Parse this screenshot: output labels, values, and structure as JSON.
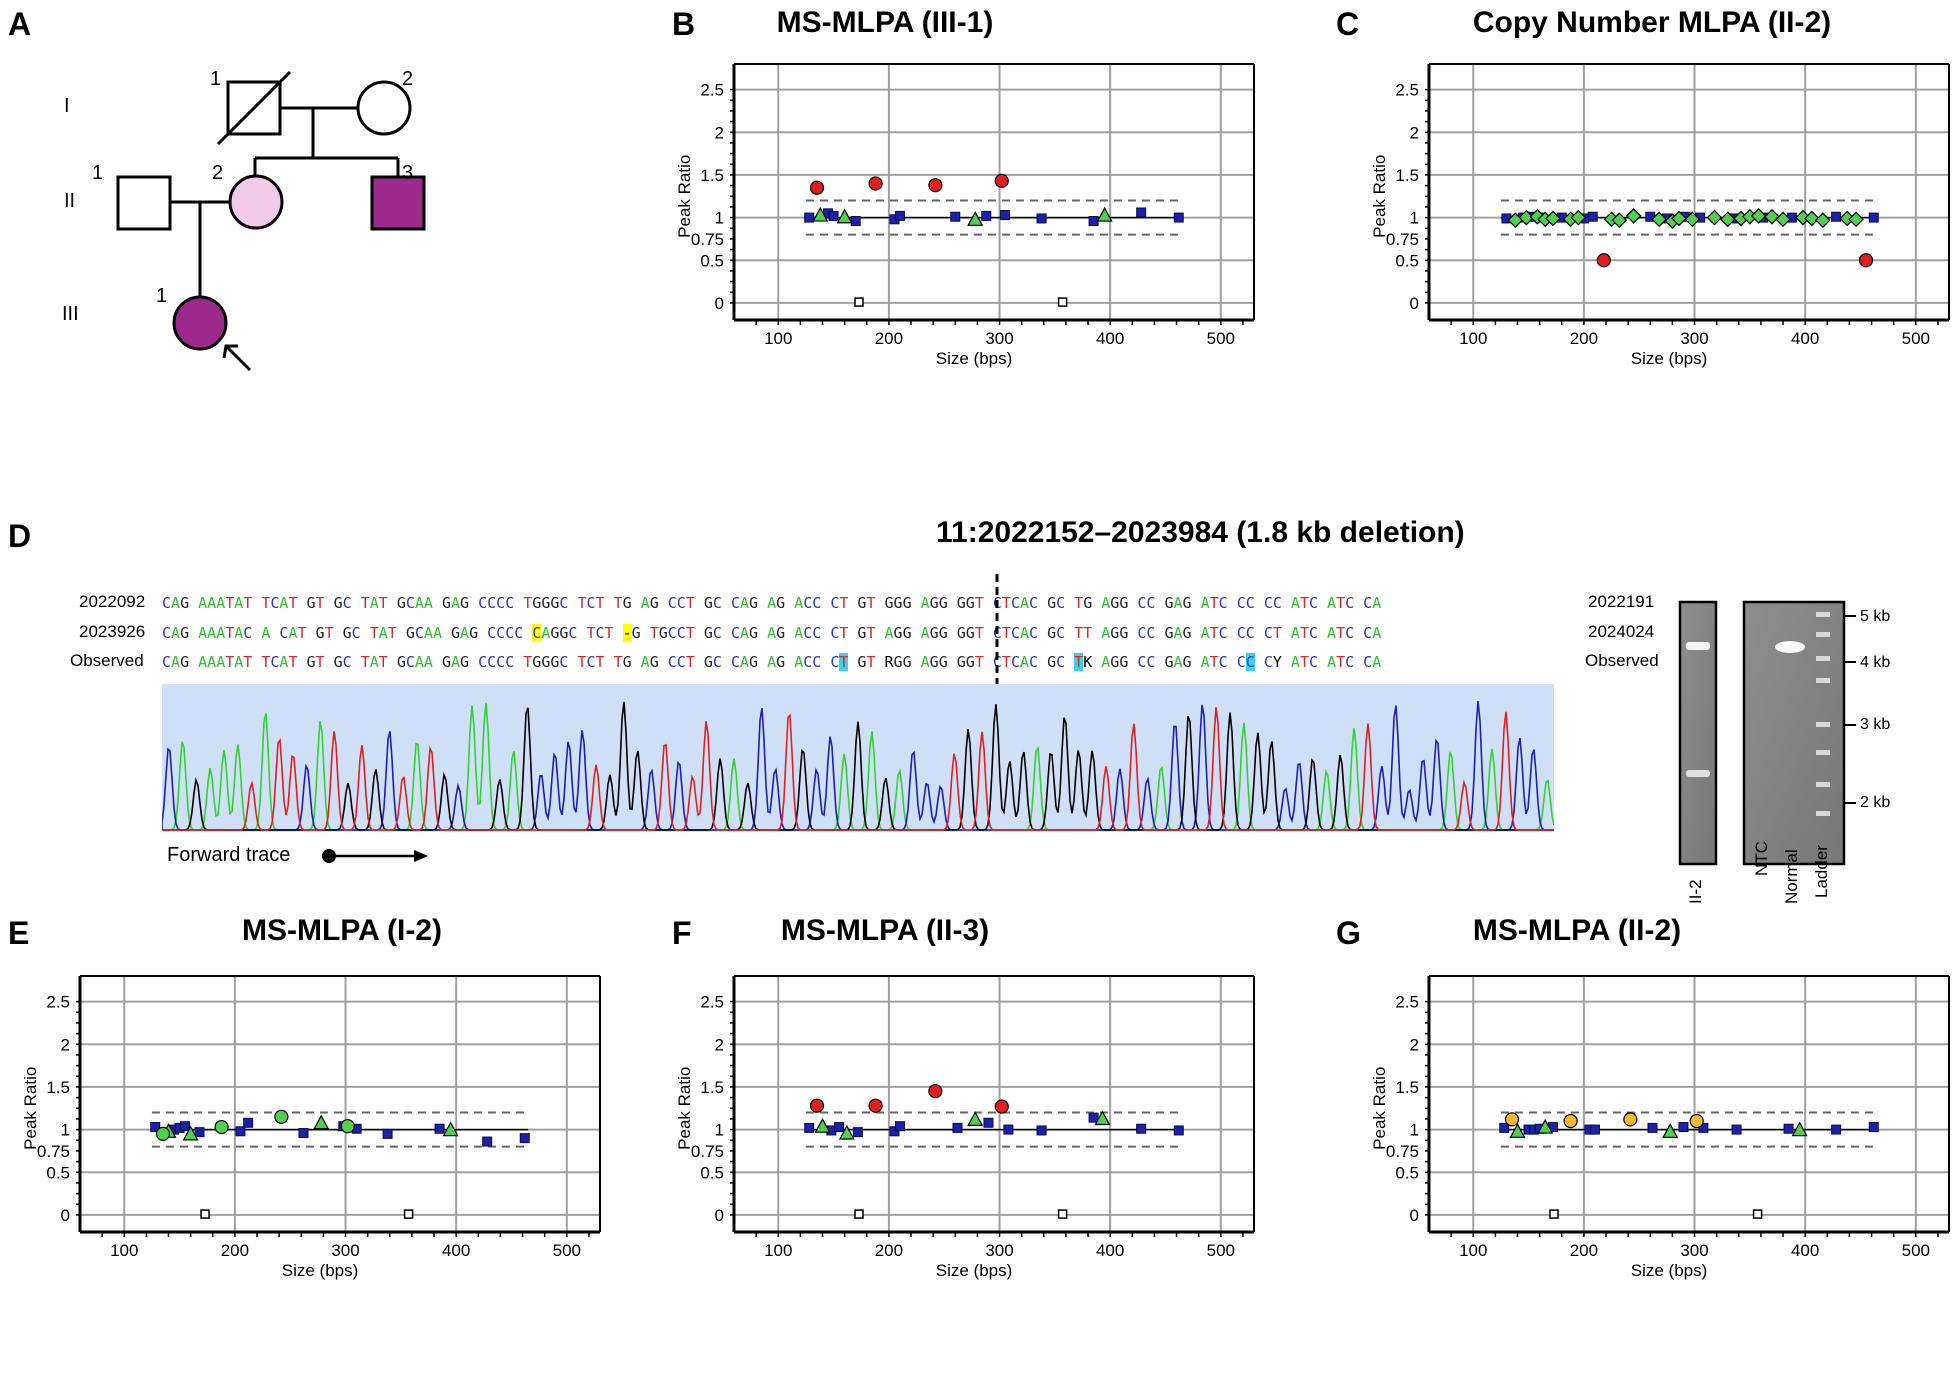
{
  "panels": {
    "A": {
      "letter": "A",
      "generations": [
        "I",
        "II",
        "III"
      ],
      "individual_numbers": {
        "I1": "1",
        "I2": "2",
        "II1": "1",
        "II2": "2",
        "II3": "3",
        "III1": "1"
      },
      "colors": {
        "affected": "#9b2a8c",
        "carrier": "#f3cbe8"
      }
    },
    "B": {
      "letter": "B"
    },
    "C": {
      "letter": "C"
    },
    "D": {
      "letter": "D"
    },
    "E": {
      "letter": "E"
    },
    "F": {
      "letter": "F"
    },
    "G": {
      "letter": "G"
    }
  },
  "sequence": {
    "title": "11:2022152–2023984 (1.8 kb deletion)",
    "rows": [
      {
        "left": "2022092",
        "right": "2022191",
        "seq": "CAG AAATAT TCAT GT GC TAT GCAA GAG CCCC TGGGC TCT TG AG CCT GC CAG AG ACC CT GT GGG AGG GGT CTCAC GC TG AGG CC GAG ATC CC CC ATC ATC CA",
        "highlights": []
      },
      {
        "left": "2023926",
        "right": "2024024",
        "seq": "CAG AAATAC A CAT GT GC TAT GCAA GAG CCCC CAGGC TCT -G TGCCT GC CAG AG ACC CT GT AGG AGG GGT CTCAC GC TT AGG CC GAG ATC CC CT ATC ATC CA",
        "highlights": []
      },
      {
        "left": "Observed",
        "right": "Observed",
        "seq": "CAG AAATAT TCAT GT GC TAT GCAA GAG CCCC TGGGC TCT TG AG CCT GC CAG AG ACC CT GT RGG AGG GGT CTCAC GC TK AGG CC GAG ATC CC CY ATC ATC CA",
        "highlights": []
      }
    ],
    "forward_trace": "Forward trace",
    "trace_colors": {
      "A": "#2fd32f",
      "C": "#1d1db8",
      "G": "#000000",
      "T": "#e02020"
    },
    "trace_bg": "#cfdff5"
  },
  "gel": {
    "lanes_left": [
      "II-2"
    ],
    "lanes_right": [
      "NTC",
      "Normal",
      "Ladder"
    ],
    "ladder_marks": [
      "5 kb",
      "4 kb",
      "3 kb",
      "2 kb"
    ]
  },
  "chart_data": [
    {
      "id": "B",
      "type": "scatter",
      "title": "MS-MLPA (III-1)",
      "xlabel": "Size (bps)",
      "ylabel": "Peak Ratio",
      "xlim": [
        60,
        530
      ],
      "ylim": [
        -0.2,
        2.8
      ],
      "xticks": [
        100,
        200,
        300,
        400,
        500
      ],
      "yticks": [
        0,
        0.5,
        0.75,
        1,
        1.25,
        1.5,
        1.75,
        2,
        2.25,
        2.5
      ],
      "ytick_labels": {
        "0": "0",
        "0.5": "0.5",
        "0.75": "0.75",
        "1": "1",
        "1.5": "1.5",
        "2": "2",
        "2.5": "2.5"
      },
      "ref_line": 1,
      "bounds": [
        0.8,
        1.2
      ],
      "range": [
        125,
        465
      ],
      "series": [
        {
          "marker": "square",
          "color": "#1c22a8",
          "points": [
            [
              128,
              1.0
            ],
            [
              145,
              1.05
            ],
            [
              150,
              1.02
            ],
            [
              170,
              0.96
            ],
            [
              205,
              0.98
            ],
            [
              210,
              1.02
            ],
            [
              260,
              1.01
            ],
            [
              288,
              1.02
            ],
            [
              305,
              1.03
            ],
            [
              338,
              0.99
            ],
            [
              385,
              0.96
            ],
            [
              428,
              1.06
            ],
            [
              462,
              1.0
            ]
          ]
        },
        {
          "marker": "triangle",
          "color": "#4fd04f",
          "points": [
            [
              138,
              1.03
            ],
            [
              160,
              1.01
            ],
            [
              278,
              0.98
            ],
            [
              395,
              1.03
            ]
          ]
        },
        {
          "marker": "circle",
          "color": "#e02020",
          "points": [
            [
              135,
              1.35
            ],
            [
              188,
              1.4
            ],
            [
              242,
              1.38
            ],
            [
              302,
              1.43
            ]
          ]
        },
        {
          "marker": "hollow-square",
          "color": "#000000",
          "points": [
            [
              173,
              0.01
            ],
            [
              357,
              0.01
            ]
          ]
        }
      ]
    },
    {
      "id": "C",
      "type": "scatter",
      "title": "Copy Number MLPA (II-2)",
      "xlabel": "Size (bps)",
      "ylabel": "Peak Ratio",
      "xlim": [
        60,
        530
      ],
      "ylim": [
        -0.2,
        2.8
      ],
      "xticks": [
        100,
        200,
        300,
        400,
        500
      ],
      "yticks": [
        0,
        0.5,
        0.75,
        1,
        1.25,
        1.5,
        1.75,
        2,
        2.25,
        2.5
      ],
      "ytick_labels": {
        "0": "0",
        "0.5": "0.5",
        "0.75": "0.75",
        "1": "1",
        "1.5": "1.5",
        "2": "2",
        "2.5": "2.5"
      },
      "ref_line": 1,
      "bounds": [
        0.8,
        1.2
      ],
      "range": [
        125,
        465
      ],
      "series": [
        {
          "marker": "square",
          "color": "#1c22a8",
          "points": [
            [
              130,
              0.99
            ],
            [
              145,
              1.0
            ],
            [
              152,
              1.01
            ],
            [
              160,
              1.0
            ],
            [
              180,
              1.0
            ],
            [
              200,
              0.99
            ],
            [
              208,
              1.01
            ],
            [
              260,
              1.01
            ],
            [
              275,
              0.99
            ],
            [
              292,
              1.01
            ],
            [
              305,
              1.0
            ],
            [
              335,
              0.99
            ],
            [
              362,
              1.0
            ],
            [
              388,
              1.0
            ],
            [
              428,
              1.01
            ],
            [
              462,
              1.0
            ]
          ]
        },
        {
          "marker": "diamond",
          "color": "#4fd04f",
          "points": [
            [
              138,
              0.97
            ],
            [
              148,
              1.0
            ],
            [
              158,
              1.01
            ],
            [
              165,
              0.98
            ],
            [
              172,
              0.99
            ],
            [
              188,
              0.98
            ],
            [
              195,
              1.0
            ],
            [
              225,
              0.98
            ],
            [
              232,
              0.97
            ],
            [
              245,
              1.02
            ],
            [
              268,
              0.98
            ],
            [
              280,
              0.96
            ],
            [
              286,
              0.99
            ],
            [
              298,
              0.98
            ],
            [
              318,
              1.0
            ],
            [
              330,
              0.98
            ],
            [
              342,
              0.99
            ],
            [
              350,
              1.01
            ],
            [
              358,
              1.02
            ],
            [
              370,
              1.01
            ],
            [
              380,
              0.98
            ],
            [
              398,
              1.0
            ],
            [
              406,
              0.99
            ],
            [
              416,
              0.97
            ],
            [
              438,
              0.99
            ],
            [
              446,
              0.98
            ]
          ]
        },
        {
          "marker": "circle",
          "color": "#e02020",
          "points": [
            [
              218,
              0.5
            ],
            [
              455,
              0.5
            ]
          ]
        }
      ]
    },
    {
      "id": "E",
      "type": "scatter",
      "title": "MS-MLPA (I-2)",
      "xlabel": "Size (bps)",
      "ylabel": "Peak Ratio",
      "xlim": [
        60,
        530
      ],
      "ylim": [
        -0.2,
        2.8
      ],
      "xticks": [
        100,
        200,
        300,
        400,
        500
      ],
      "yticks": [
        0,
        0.5,
        0.75,
        1,
        1.25,
        1.5,
        1.75,
        2,
        2.25,
        2.5
      ],
      "ytick_labels": {
        "0": "0",
        "0.5": "0.5",
        "0.75": "0.75",
        "1": "1",
        "1.5": "1.5",
        "2": "2",
        "2.5": "2.5"
      },
      "ref_line": 1,
      "bounds": [
        0.8,
        1.2
      ],
      "range": [
        125,
        465
      ],
      "series": [
        {
          "marker": "square",
          "color": "#1c22a8",
          "points": [
            [
              128,
              1.03
            ],
            [
              145,
              1.0
            ],
            [
              150,
              1.02
            ],
            [
              155,
              1.04
            ],
            [
              168,
              0.97
            ],
            [
              205,
              0.98
            ],
            [
              212,
              1.08
            ],
            [
              262,
              0.96
            ],
            [
              298,
              1.04
            ],
            [
              310,
              1.01
            ],
            [
              338,
              0.95
            ],
            [
              385,
              1.01
            ],
            [
              428,
              0.86
            ],
            [
              462,
              0.9
            ]
          ]
        },
        {
          "marker": "triangle",
          "color": "#4fd04f",
          "points": [
            [
              140,
              0.98
            ],
            [
              160,
              0.95
            ],
            [
              278,
              1.08
            ],
            [
              395,
              1.0
            ]
          ]
        },
        {
          "marker": "circle",
          "color": "#4fd04f",
          "points": [
            [
              135,
              0.95
            ],
            [
              188,
              1.03
            ],
            [
              242,
              1.15
            ],
            [
              302,
              1.04
            ]
          ]
        },
        {
          "marker": "hollow-square",
          "color": "#000000",
          "points": [
            [
              173,
              0.01
            ],
            [
              357,
              0.01
            ]
          ]
        }
      ]
    },
    {
      "id": "F",
      "type": "scatter",
      "title": "MS-MLPA (II-3)",
      "xlabel": "Size (bps)",
      "ylabel": "Peak Ratio",
      "xlim": [
        60,
        530
      ],
      "ylim": [
        -0.2,
        2.8
      ],
      "xticks": [
        100,
        200,
        300,
        400,
        500
      ],
      "yticks": [
        0,
        0.5,
        0.75,
        1,
        1.25,
        1.5,
        1.75,
        2,
        2.25,
        2.5
      ],
      "ytick_labels": {
        "0": "0",
        "0.5": "0.5",
        "0.75": "0.75",
        "1": "1",
        "1.5": "1.5",
        "2": "2",
        "2.5": "2.5"
      },
      "ref_line": 1,
      "bounds": [
        0.8,
        1.2
      ],
      "range": [
        125,
        465
      ],
      "series": [
        {
          "marker": "square",
          "color": "#1c22a8",
          "points": [
            [
              128,
              1.02
            ],
            [
              148,
              0.99
            ],
            [
              155,
              1.03
            ],
            [
              172,
              0.97
            ],
            [
              205,
              0.98
            ],
            [
              210,
              1.04
            ],
            [
              262,
              1.02
            ],
            [
              290,
              1.08
            ],
            [
              308,
              1.0
            ],
            [
              338,
              0.99
            ],
            [
              385,
              1.14
            ],
            [
              428,
              1.01
            ],
            [
              462,
              0.99
            ]
          ]
        },
        {
          "marker": "triangle",
          "color": "#4fd04f",
          "points": [
            [
              140,
              1.04
            ],
            [
              162,
              0.96
            ],
            [
              278,
              1.12
            ],
            [
              393,
              1.13
            ]
          ]
        },
        {
          "marker": "circle",
          "color": "#e02020",
          "points": [
            [
              135,
              1.28
            ],
            [
              188,
              1.28
            ],
            [
              242,
              1.45
            ],
            [
              302,
              1.27
            ]
          ]
        },
        {
          "marker": "hollow-square",
          "color": "#000000",
          "points": [
            [
              173,
              0.01
            ],
            [
              357,
              0.01
            ]
          ]
        }
      ]
    },
    {
      "id": "G",
      "type": "scatter",
      "title": "MS-MLPA (II-2)",
      "xlabel": "Size (bps)",
      "ylabel": "Peak Ratio",
      "xlim": [
        60,
        530
      ],
      "ylim": [
        -0.2,
        2.8
      ],
      "xticks": [
        100,
        200,
        300,
        400,
        500
      ],
      "yticks": [
        0,
        0.5,
        0.75,
        1,
        1.25,
        1.5,
        1.75,
        2,
        2.25,
        2.5
      ],
      "ytick_labels": {
        "0": "0",
        "0.5": "0.5",
        "0.75": "0.75",
        "1": "1",
        "1.5": "1.5",
        "2": "2",
        "2.5": "2.5"
      },
      "ref_line": 1,
      "bounds": [
        0.8,
        1.2
      ],
      "range": [
        125,
        465
      ],
      "series": [
        {
          "marker": "square",
          "color": "#1c22a8",
          "points": [
            [
              128,
              1.02
            ],
            [
              150,
              1.0
            ],
            [
              155,
              1.0
            ],
            [
              160,
              1.01
            ],
            [
              172,
              1.03
            ],
            [
              205,
              1.0
            ],
            [
              210,
              1.0
            ],
            [
              262,
              1.02
            ],
            [
              290,
              1.03
            ],
            [
              308,
              1.02
            ],
            [
              338,
              1.0
            ],
            [
              385,
              1.01
            ],
            [
              428,
              1.0
            ],
            [
              462,
              1.03
            ]
          ]
        },
        {
          "marker": "triangle",
          "color": "#4fd04f",
          "points": [
            [
              140,
              0.98
            ],
            [
              165,
              1.03
            ],
            [
              278,
              0.98
            ],
            [
              395,
              1.0
            ]
          ]
        },
        {
          "marker": "circle",
          "color": "#f5b82e",
          "points": [
            [
              135,
              1.12
            ],
            [
              188,
              1.1
            ],
            [
              242,
              1.12
            ],
            [
              302,
              1.1
            ]
          ]
        },
        {
          "marker": "hollow-square",
          "color": "#000000",
          "points": [
            [
              173,
              0.01
            ],
            [
              357,
              0.01
            ]
          ]
        }
      ]
    }
  ]
}
